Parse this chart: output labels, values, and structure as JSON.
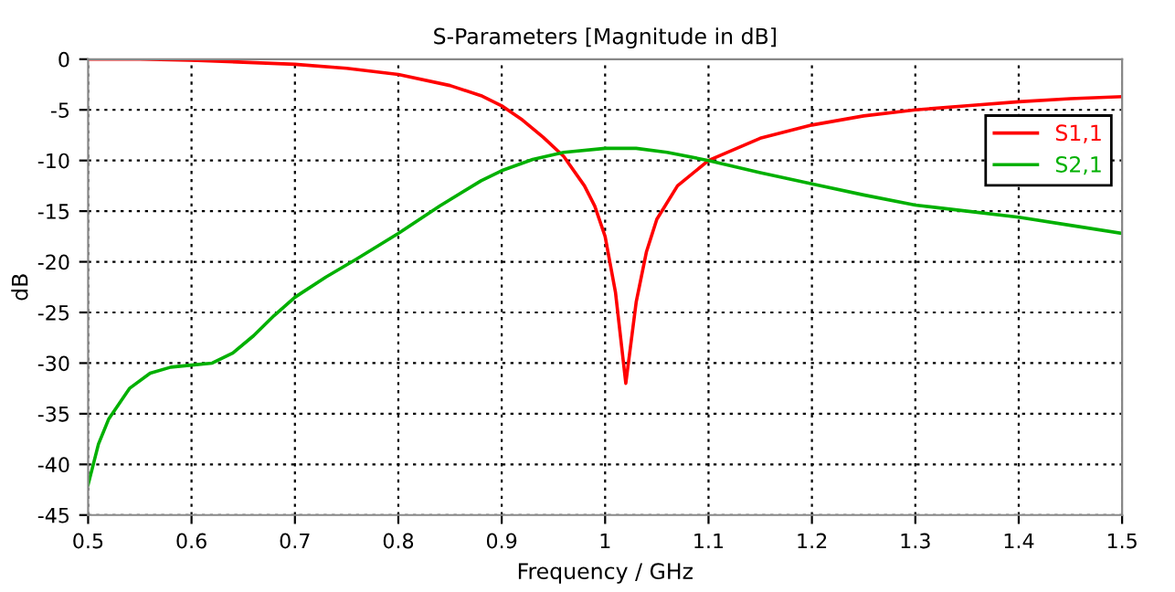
{
  "chart_data": {
    "type": "line",
    "title": "S-Parameters [Magnitude in dB]",
    "xlabel": "Frequency / GHz",
    "ylabel": "dB",
    "xlim": [
      0.5,
      1.5
    ],
    "ylim": [
      -45,
      0
    ],
    "xticks": [
      0.5,
      0.6,
      0.7,
      0.8,
      0.9,
      1,
      1.1,
      1.2,
      1.3,
      1.4,
      1.5
    ],
    "yticks": [
      -45,
      -40,
      -35,
      -30,
      -25,
      -20,
      -15,
      -10,
      -5,
      0
    ],
    "grid": true,
    "legend": "top right",
    "line_style": "solid",
    "marker": "none",
    "series": [
      {
        "name": "S1,1",
        "color": "#ff0000",
        "x": [
          0.5,
          0.55,
          0.6,
          0.65,
          0.7,
          0.75,
          0.8,
          0.85,
          0.88,
          0.9,
          0.92,
          0.94,
          0.96,
          0.98,
          0.99,
          1.0,
          1.01,
          1.02,
          1.03,
          1.04,
          1.05,
          1.07,
          1.1,
          1.15,
          1.2,
          1.25,
          1.3,
          1.35,
          1.4,
          1.45,
          1.5
        ],
        "values": [
          0,
          0,
          -0.1,
          -0.3,
          -0.5,
          -0.9,
          -1.5,
          -2.6,
          -3.6,
          -4.6,
          -6.0,
          -7.7,
          -9.6,
          -12.5,
          -14.5,
          -17.5,
          -23,
          -32,
          -24,
          -19,
          -15.8,
          -12.5,
          -10,
          -7.8,
          -6.5,
          -5.6,
          -5,
          -4.6,
          -4.2,
          -3.9,
          -3.7
        ]
      },
      {
        "name": "S2,1",
        "color": "#00b000",
        "x": [
          0.5,
          0.51,
          0.52,
          0.54,
          0.56,
          0.58,
          0.6,
          0.62,
          0.64,
          0.66,
          0.68,
          0.7,
          0.73,
          0.76,
          0.8,
          0.84,
          0.88,
          0.9,
          0.93,
          0.96,
          1.0,
          1.03,
          1.06,
          1.1,
          1.15,
          1.2,
          1.25,
          1.3,
          1.35,
          1.4,
          1.45,
          1.5
        ],
        "values": [
          -42,
          -38,
          -35.5,
          -32.5,
          -31,
          -30.4,
          -30.2,
          -30.0,
          -29,
          -27.3,
          -25.3,
          -23.5,
          -21.5,
          -19.7,
          -17.2,
          -14.5,
          -12,
          -11,
          -9.9,
          -9.2,
          -8.8,
          -8.8,
          -9.2,
          -10,
          -11.2,
          -12.3,
          -13.4,
          -14.4,
          -15,
          -15.6,
          -16.4,
          -17.2
        ]
      }
    ]
  }
}
